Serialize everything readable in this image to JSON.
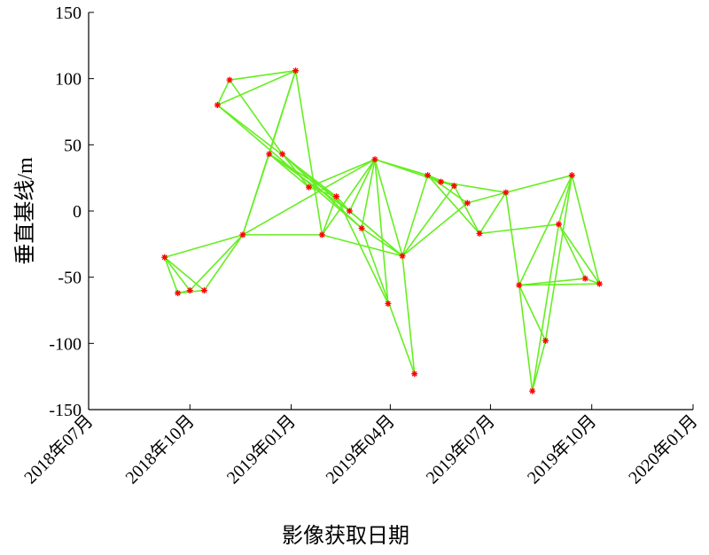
{
  "chart_data": {
    "type": "network",
    "xlabel": "影像获取日期",
    "ylabel": "垂直基线/m",
    "xlim": [
      "2018-07",
      "2020-01"
    ],
    "xticks": [
      {
        "value": "2018-07",
        "label": "2018年07月"
      },
      {
        "value": "2018-10",
        "label": "2018年10月"
      },
      {
        "value": "2019-01",
        "label": "2019年01月"
      },
      {
        "value": "2019-04",
        "label": "2019年04月"
      },
      {
        "value": "2019-07",
        "label": "2019年07月"
      },
      {
        "value": "2019-10",
        "label": "2019年10月"
      },
      {
        "value": "2020-01",
        "label": "2020年01月"
      }
    ],
    "ylim": [
      -150,
      150
    ],
    "yticks": [
      -150,
      -100,
      -50,
      0,
      50,
      100,
      150
    ],
    "line_color": "#66ee22",
    "marker_color": "#ff0000",
    "x": [
      "2018-09-08",
      "2018-09-20",
      "2018-10-01",
      "2018-10-14",
      "2018-10-26",
      "2018-11-06",
      "2018-11-18",
      "2018-12-12",
      "2018-12-24",
      "2019-01-05",
      "2019-01-17",
      "2019-01-29",
      "2019-02-11",
      "2019-02-23",
      "2019-03-06",
      "2019-03-18",
      "2019-03-30",
      "2019-04-12",
      "2019-04-23",
      "2019-05-05",
      "2019-05-17",
      "2019-05-29",
      "2019-06-10",
      "2019-06-21",
      "2019-07-15",
      "2019-07-27",
      "2019-08-08",
      "2019-08-20",
      "2019-09-01",
      "2019-09-13",
      "2019-09-25",
      "2019-10-08"
    ],
    "values": [
      -35,
      -62,
      -60,
      -60,
      80,
      99,
      -18,
      43,
      43,
      106,
      18,
      -18,
      11,
      0,
      -13,
      39,
      -70,
      -34,
      -123,
      27,
      22,
      19,
      6,
      -17,
      14,
      -56,
      -136,
      -98,
      -10,
      27,
      -51,
      -55
    ],
    "edges": [
      [
        0,
        1
      ],
      [
        0,
        2
      ],
      [
        0,
        3
      ],
      [
        1,
        2
      ],
      [
        1,
        3
      ],
      [
        0,
        6
      ],
      [
        2,
        6
      ],
      [
        3,
        6
      ],
      [
        4,
        5
      ],
      [
        4,
        9
      ],
      [
        4,
        12
      ],
      [
        4,
        14
      ],
      [
        5,
        9
      ],
      [
        5,
        8
      ],
      [
        9,
        7
      ],
      [
        9,
        6
      ],
      [
        9,
        11
      ],
      [
        6,
        7
      ],
      [
        6,
        11
      ],
      [
        6,
        15
      ],
      [
        7,
        10
      ],
      [
        7,
        13
      ],
      [
        7,
        12
      ],
      [
        8,
        10
      ],
      [
        8,
        14
      ],
      [
        8,
        17
      ],
      [
        10,
        12
      ],
      [
        10,
        15
      ],
      [
        11,
        15
      ],
      [
        11,
        12
      ],
      [
        11,
        17
      ],
      [
        12,
        13
      ],
      [
        12,
        16
      ],
      [
        13,
        15
      ],
      [
        13,
        17
      ],
      [
        14,
        15
      ],
      [
        14,
        17
      ],
      [
        15,
        17
      ],
      [
        15,
        19
      ],
      [
        15,
        20
      ],
      [
        15,
        16
      ],
      [
        14,
        18
      ],
      [
        17,
        18
      ],
      [
        17,
        19
      ],
      [
        17,
        21
      ],
      [
        17,
        22
      ],
      [
        19,
        20
      ],
      [
        19,
        21
      ],
      [
        19,
        22
      ],
      [
        19,
        23
      ],
      [
        20,
        21
      ],
      [
        20,
        24
      ],
      [
        21,
        23
      ],
      [
        22,
        24
      ],
      [
        23,
        24
      ],
      [
        23,
        28
      ],
      [
        24,
        25
      ],
      [
        24,
        29
      ],
      [
        25,
        29
      ],
      [
        25,
        27
      ],
      [
        25,
        26
      ],
      [
        25,
        30
      ],
      [
        25,
        31
      ],
      [
        28,
        29
      ],
      [
        28,
        30
      ],
      [
        28,
        31
      ],
      [
        26,
        27
      ],
      [
        26,
        28
      ],
      [
        27,
        29
      ],
      [
        29,
        31
      ],
      [
        30,
        31
      ]
    ]
  }
}
